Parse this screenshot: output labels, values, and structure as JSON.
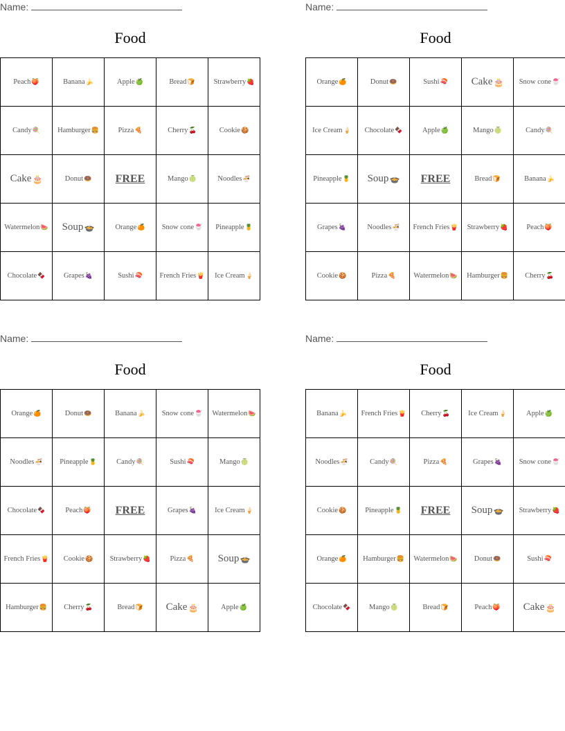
{
  "name_label": "Name:",
  "cards": [
    {
      "title": "Food",
      "cells": [
        {
          "label": "Peach",
          "icon": "🍑"
        },
        {
          "label": "Banana",
          "icon": "🍌"
        },
        {
          "label": "Apple",
          "icon": "🍏"
        },
        {
          "label": "Bread",
          "icon": "🍞"
        },
        {
          "label": "Strawberry",
          "icon": "🍓"
        },
        {
          "label": "Candy",
          "icon": "🍭"
        },
        {
          "label": "Hamburger",
          "icon": "🍔"
        },
        {
          "label": "Pizza",
          "icon": "🍕"
        },
        {
          "label": "Cherry",
          "icon": "🍒"
        },
        {
          "label": "Cookie",
          "icon": "🍪"
        },
        {
          "label": "Cake",
          "icon": "🎂",
          "big": true
        },
        {
          "label": "Donut",
          "icon": "🍩"
        },
        {
          "label": "FREE",
          "icon": "",
          "free": true
        },
        {
          "label": "Mango",
          "icon": "🍈"
        },
        {
          "label": "Noodles",
          "icon": "🍜"
        },
        {
          "label": "Watermelon",
          "icon": "🍉"
        },
        {
          "label": "Soup",
          "icon": "🍲",
          "big": true
        },
        {
          "label": "Orange",
          "icon": "🍊"
        },
        {
          "label": "Snow cone",
          "icon": "🍧"
        },
        {
          "label": "Pineapple",
          "icon": "🍍"
        },
        {
          "label": "Chocolate",
          "icon": "🍫"
        },
        {
          "label": "Grapes",
          "icon": "🍇"
        },
        {
          "label": "Sushi",
          "icon": "🍣"
        },
        {
          "label": "French Fries",
          "icon": "🍟"
        },
        {
          "label": "Ice Cream",
          "icon": "🍦"
        }
      ]
    },
    {
      "title": "Food",
      "cells": [
        {
          "label": "Orange",
          "icon": "🍊"
        },
        {
          "label": "Donut",
          "icon": "🍩"
        },
        {
          "label": "Sushi",
          "icon": "🍣"
        },
        {
          "label": "Cake",
          "icon": "🎂",
          "big": true
        },
        {
          "label": "Snow cone",
          "icon": "🍧"
        },
        {
          "label": "Ice Cream",
          "icon": "🍦"
        },
        {
          "label": "Chocolate",
          "icon": "🍫"
        },
        {
          "label": "Apple",
          "icon": "🍏"
        },
        {
          "label": "Mango",
          "icon": "🍈"
        },
        {
          "label": "Candy",
          "icon": "🍭"
        },
        {
          "label": "Pineapple",
          "icon": "🍍"
        },
        {
          "label": "Soup",
          "icon": "🍲",
          "big": true
        },
        {
          "label": "FREE",
          "icon": "",
          "free": true
        },
        {
          "label": "Bread",
          "icon": "🍞"
        },
        {
          "label": "Banana",
          "icon": "🍌"
        },
        {
          "label": "Grapes",
          "icon": "🍇"
        },
        {
          "label": "Noodles",
          "icon": "🍜"
        },
        {
          "label": "French Fries",
          "icon": "🍟"
        },
        {
          "label": "Strawberry",
          "icon": "🍓"
        },
        {
          "label": "Peach",
          "icon": "🍑"
        },
        {
          "label": "Cookie",
          "icon": "🍪"
        },
        {
          "label": "Pizza",
          "icon": "🍕"
        },
        {
          "label": "Watermelon",
          "icon": "🍉"
        },
        {
          "label": "Hamburger",
          "icon": "🍔"
        },
        {
          "label": "Cherry",
          "icon": "🍒"
        }
      ]
    },
    {
      "title": "Food",
      "cells": [
        {
          "label": "Orange",
          "icon": "🍊"
        },
        {
          "label": "Donut",
          "icon": "🍩"
        },
        {
          "label": "Banana",
          "icon": "🍌"
        },
        {
          "label": "Snow cone",
          "icon": "🍧"
        },
        {
          "label": "Watermelon",
          "icon": "🍉"
        },
        {
          "label": "Noodles",
          "icon": "🍜"
        },
        {
          "label": "Pineapple",
          "icon": "🍍"
        },
        {
          "label": "Candy",
          "icon": "🍭"
        },
        {
          "label": "Sushi",
          "icon": "🍣"
        },
        {
          "label": "Mango",
          "icon": "🍈"
        },
        {
          "label": "Chocolate",
          "icon": "🍫"
        },
        {
          "label": "Peach",
          "icon": "🍑"
        },
        {
          "label": "FREE",
          "icon": "",
          "free": true
        },
        {
          "label": "Grapes",
          "icon": "🍇"
        },
        {
          "label": "Ice Cream",
          "icon": "🍦"
        },
        {
          "label": "French Fries",
          "icon": "🍟"
        },
        {
          "label": "Cookie",
          "icon": "🍪"
        },
        {
          "label": "Strawberry",
          "icon": "🍓"
        },
        {
          "label": "Pizza",
          "icon": "🍕"
        },
        {
          "label": "Soup",
          "icon": "🍲",
          "big": true
        },
        {
          "label": "Hamburger",
          "icon": "🍔"
        },
        {
          "label": "Cherry",
          "icon": "🍒"
        },
        {
          "label": "Bread",
          "icon": "🍞"
        },
        {
          "label": "Cake",
          "icon": "🎂",
          "big": true
        },
        {
          "label": "Apple",
          "icon": "🍏"
        }
      ]
    },
    {
      "title": "Food",
      "cells": [
        {
          "label": "Banana",
          "icon": "🍌"
        },
        {
          "label": "French Fries",
          "icon": "🍟"
        },
        {
          "label": "Cherry",
          "icon": "🍒"
        },
        {
          "label": "Ice Cream",
          "icon": "🍦"
        },
        {
          "label": "Apple",
          "icon": "🍏"
        },
        {
          "label": "Noodles",
          "icon": "🍜"
        },
        {
          "label": "Candy",
          "icon": "🍭"
        },
        {
          "label": "Pizza",
          "icon": "🍕"
        },
        {
          "label": "Grapes",
          "icon": "🍇"
        },
        {
          "label": "Snow cone",
          "icon": "🍧"
        },
        {
          "label": "Cookie",
          "icon": "🍪"
        },
        {
          "label": "Pineapple",
          "icon": "🍍"
        },
        {
          "label": "FREE",
          "icon": "",
          "free": true
        },
        {
          "label": "Soup",
          "icon": "🍲",
          "big": true
        },
        {
          "label": "Strawberry",
          "icon": "🍓"
        },
        {
          "label": "Orange",
          "icon": "🍊"
        },
        {
          "label": "Hamburger",
          "icon": "🍔"
        },
        {
          "label": "Watermelon",
          "icon": "🍉"
        },
        {
          "label": "Donut",
          "icon": "🍩"
        },
        {
          "label": "Sushi",
          "icon": "🍣"
        },
        {
          "label": "Chocolate",
          "icon": "🍫"
        },
        {
          "label": "Mango",
          "icon": "🍈"
        },
        {
          "label": "Bread",
          "icon": "🍞"
        },
        {
          "label": "Peach",
          "icon": "🍑"
        },
        {
          "label": "Cake",
          "icon": "🎂",
          "big": true
        }
      ]
    }
  ]
}
